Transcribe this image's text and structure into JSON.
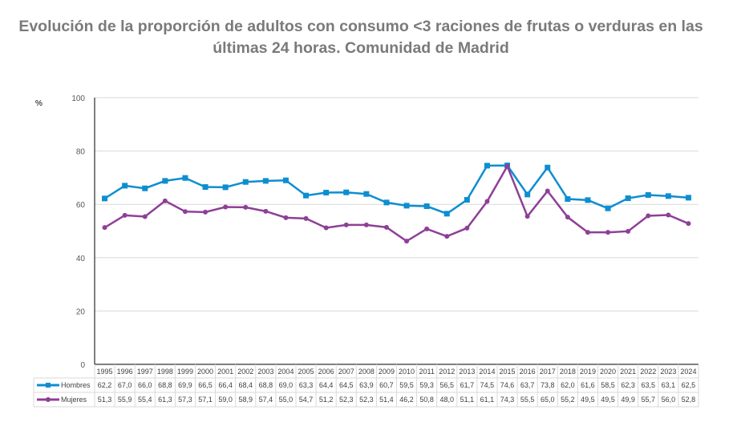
{
  "chart_data": {
    "type": "line",
    "title": "Evolución de la proporción de adultos con consumo <3 raciones de frutas o verduras en las últimas 24 horas. Comunidad de Madrid",
    "ylabel": "%",
    "ylim": [
      0,
      100
    ],
    "yticks": [
      "0",
      "20",
      "40",
      "60",
      "80",
      "100"
    ],
    "grid": true,
    "legend": "data-table",
    "categories": [
      "1995",
      "1996",
      "1997",
      "1998",
      "1999",
      "2000",
      "2001",
      "2002",
      "2003",
      "2004",
      "2005",
      "2006",
      "2007",
      "2008",
      "2009",
      "2010",
      "2011",
      "2012",
      "2013",
      "2014",
      "2015",
      "2016",
      "2017",
      "2018",
      "2019",
      "2020",
      "2021",
      "2022",
      "2023",
      "2024"
    ],
    "series": [
      {
        "name": "Hombres",
        "color": "#0d8ed0",
        "marker": "square",
        "values": [
          62.2,
          67.0,
          66.0,
          68.8,
          69.9,
          66.5,
          66.4,
          68.4,
          68.8,
          69.0,
          63.3,
          64.4,
          64.5,
          63.9,
          60.7,
          59.5,
          59.3,
          56.5,
          61.7,
          74.5,
          74.6,
          63.7,
          73.8,
          62.0,
          61.6,
          58.5,
          62.3,
          63.5,
          63.1,
          62.5
        ]
      },
      {
        "name": "Mujeres",
        "color": "#8e3f97",
        "marker": "circle",
        "values": [
          51.3,
          55.9,
          55.4,
          61.3,
          57.3,
          57.1,
          59.0,
          58.9,
          57.4,
          55.0,
          54.7,
          51.2,
          52.3,
          52.3,
          51.4,
          46.2,
          50.8,
          48.0,
          51.1,
          61.1,
          74.3,
          55.5,
          65.0,
          55.2,
          49.5,
          49.5,
          49.9,
          55.7,
          56.0,
          52.8
        ]
      }
    ]
  }
}
